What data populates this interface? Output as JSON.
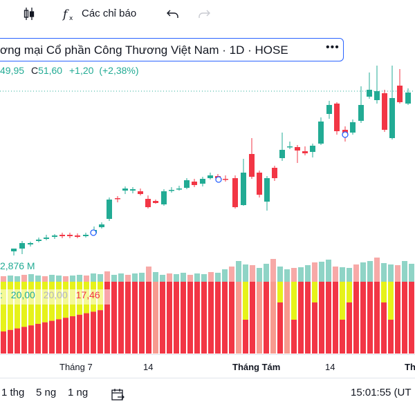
{
  "toolbar": {
    "indicators_label": "Các chỉ báo"
  },
  "legend": {
    "title": "ơng mại Cổ phần Công Thương Việt Nam · 1D · HOSE",
    "more": "•••"
  },
  "ohlc": {
    "partial_low": "49,95",
    "close_key": "C",
    "close": "51,60",
    "change": "+1,20",
    "change_pct": "(+2,38%)"
  },
  "volume": {
    "value": "2,876 M"
  },
  "indicator": {
    "v1": "20,00",
    "v2": "20,00",
    "v3": "17,46"
  },
  "xaxis": {
    "t1": "Tháng 7",
    "t2": "14",
    "t3": "Tháng Tám",
    "t4": "14",
    "t5": "Th"
  },
  "bottombar": {
    "r1": "1 thg",
    "r2": "5 ng",
    "r3": "1 ng",
    "time": "15:01:55 (UT"
  },
  "colors": {
    "up": "#22ab94",
    "down": "#f23645",
    "accent": "#2962ff",
    "indicator_red": "#f23645",
    "indicator_yellow": "#e6f21a"
  }
}
